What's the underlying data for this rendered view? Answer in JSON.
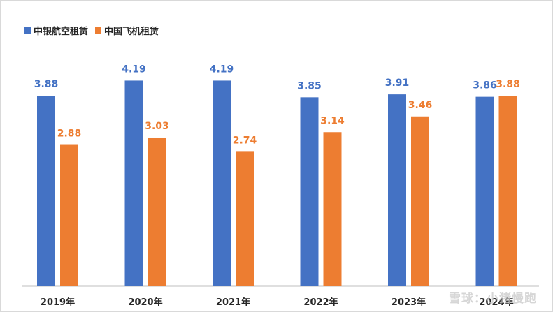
{
  "chart_data": {
    "type": "bar",
    "title": "",
    "xlabel": "",
    "ylabel": "",
    "ylim": [
      0,
      4.5
    ],
    "grid": false,
    "legend_position": "top-left",
    "categories": [
      "2019年",
      "2020年",
      "2021年",
      "2022年",
      "2023年",
      "2024年"
    ],
    "series": [
      {
        "name": "中银航空租赁",
        "color": "#4472c4",
        "values": [
          3.88,
          4.19,
          4.19,
          3.85,
          3.91,
          3.86
        ]
      },
      {
        "name": "中国飞机租赁",
        "color": "#ed7d31",
        "values": [
          2.88,
          3.03,
          2.74,
          3.14,
          3.46,
          3.88
        ]
      }
    ]
  },
  "watermark": "雪球：小猪慢跑"
}
